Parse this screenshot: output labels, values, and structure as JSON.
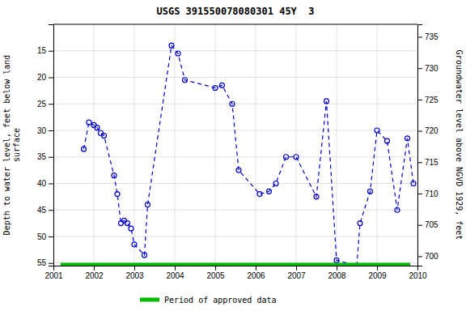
{
  "chart_data": {
    "type": "line",
    "title": "USGS 391550078080301 45Y  3",
    "ylabel": "Depth to water level, feet below land\nsurface",
    "y2label": "Groundwater level above NGVD 1929, feet",
    "xlim": [
      2001,
      2010
    ],
    "xticks": [
      2001,
      2002,
      2003,
      2004,
      2005,
      2006,
      2007,
      2008,
      2009,
      2010
    ],
    "ylim": [
      55.5,
      10
    ],
    "yticks": [
      15,
      20,
      25,
      30,
      35,
      40,
      45,
      50,
      55
    ],
    "y2lim": [
      698.5,
      737
    ],
    "y2ticks": [
      700,
      705,
      710,
      715,
      720,
      725,
      730,
      735
    ],
    "grid": true,
    "legend": "bottom",
    "series": [
      {
        "type": "line",
        "color": "#0000cc",
        "marker": "circle",
        "line_style": "dashed",
        "x": [
          2001.75,
          2001.88,
          2002.0,
          2002.08,
          2002.17,
          2002.25,
          2002.5,
          2002.58,
          2002.67,
          2002.75,
          2002.83,
          2002.92,
          2003.0,
          2003.25,
          2003.33,
          2003.92,
          2004.08,
          2004.25,
          2005.0,
          2005.17,
          2005.42,
          2005.58,
          2006.1,
          2006.33,
          2006.5,
          2006.75,
          2007.0,
          2007.5,
          2007.75,
          2008.0,
          2008.5,
          2008.58,
          2008.83,
          2009.0,
          2009.25,
          2009.5,
          2009.75,
          2009.9
        ],
        "values": [
          33.5,
          28.5,
          29.0,
          29.5,
          30.5,
          31.0,
          38.5,
          42.0,
          47.5,
          47.0,
          47.5,
          48.5,
          51.5,
          53.5,
          44.0,
          14.0,
          15.5,
          20.5,
          22.0,
          21.5,
          25.0,
          37.5,
          42.0,
          41.5,
          40.0,
          35.0,
          35.0,
          42.5,
          24.5,
          54.5,
          55.5,
          47.5,
          41.5,
          30.0,
          32.0,
          45.0,
          31.5,
          40.0
        ]
      },
      {
        "type": "hline",
        "name": "Period of approved data",
        "color": "#00bb00",
        "values": [
          55.5
        ]
      }
    ]
  }
}
